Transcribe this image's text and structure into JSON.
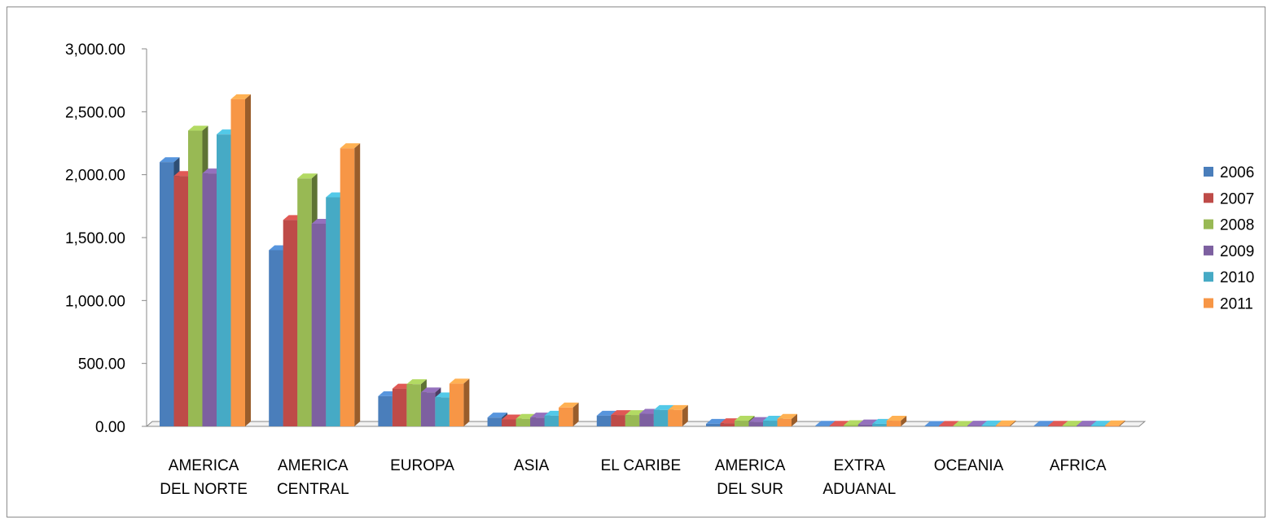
{
  "chart_data": {
    "type": "bar",
    "title": "",
    "xlabel": "",
    "ylabel": "",
    "ylim": [
      0,
      3000
    ],
    "yticks": [
      0,
      500,
      1000,
      1500,
      2000,
      2500,
      3000
    ],
    "ytick_labels": [
      "0.00",
      "500.00",
      "1,000.00",
      "1,500.00",
      "2,000.00",
      "2,500.00",
      "3,000.00"
    ],
    "grid": false,
    "legend_position": "right",
    "categories": [
      [
        "AMERICA",
        "DEL NORTE"
      ],
      [
        "AMERICA",
        "CENTRAL"
      ],
      [
        "EUROPA"
      ],
      [
        "ASIA"
      ],
      [
        "EL CARIBE"
      ],
      [
        "AMERICA",
        "DEL SUR"
      ],
      [
        "EXTRA",
        "ADUANAL"
      ],
      [
        "OCEANIA"
      ],
      [
        "AFRICA"
      ]
    ],
    "series": [
      {
        "name": "2006",
        "color": "#4a7ebb",
        "values": [
          2100,
          1400,
          240,
          70,
          85,
          20,
          5,
          3,
          5
        ]
      },
      {
        "name": "2007",
        "color": "#be4b48",
        "values": [
          1990,
          1640,
          300,
          55,
          90,
          25,
          5,
          4,
          5
        ]
      },
      {
        "name": "2008",
        "color": "#98b954",
        "values": [
          2350,
          1970,
          335,
          60,
          90,
          45,
          10,
          4,
          6
        ]
      },
      {
        "name": "2009",
        "color": "#7d60a0",
        "values": [
          2010,
          1610,
          270,
          70,
          100,
          35,
          15,
          6,
          6
        ]
      },
      {
        "name": "2010",
        "color": "#46aac5",
        "values": [
          2320,
          1820,
          230,
          85,
          130,
          45,
          20,
          7,
          6
        ]
      },
      {
        "name": "2011",
        "color": "#f79646",
        "values": [
          2600,
          2210,
          340,
          150,
          130,
          60,
          45,
          8,
          8
        ]
      }
    ]
  }
}
